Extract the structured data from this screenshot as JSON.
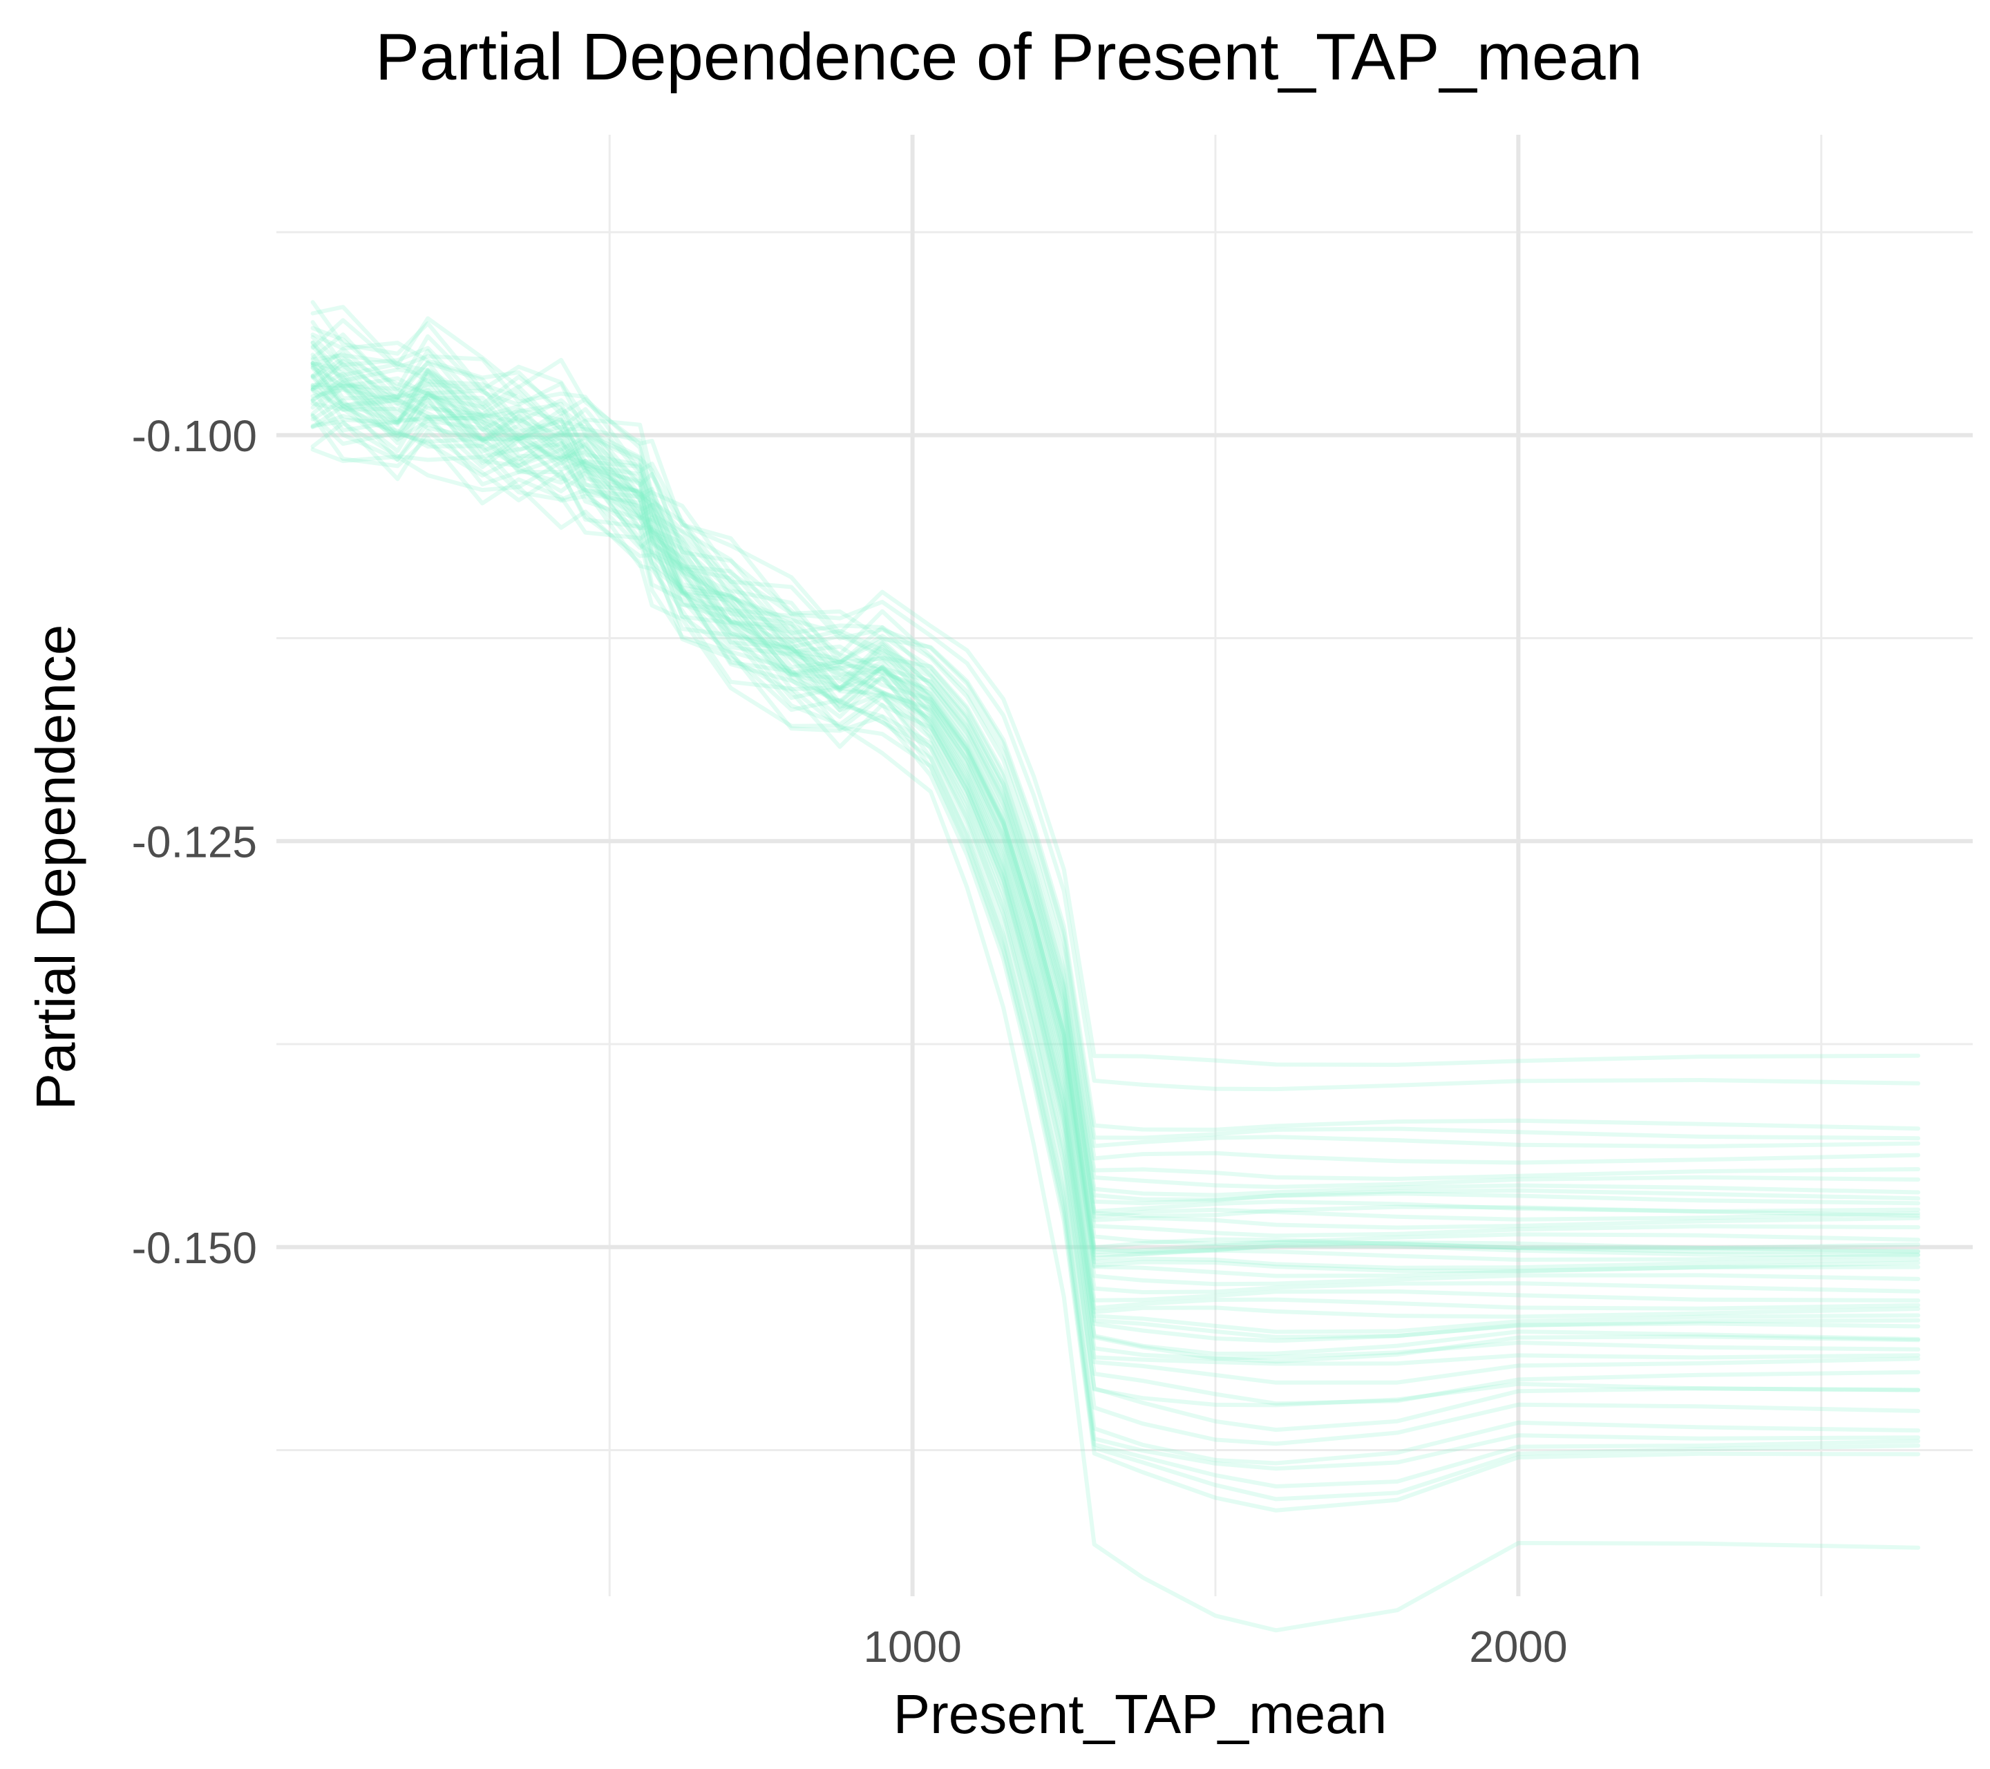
{
  "chart_data": {
    "type": "line",
    "title": "Partial Dependence of Present_TAP_mean",
    "xlabel": "Present_TAP_mean",
    "ylabel": "Partial Dependence",
    "xlim": [
      -50,
      2750
    ],
    "ylim": [
      -0.1715,
      -0.0815
    ],
    "x_ticks": [
      1000,
      2000
    ],
    "x_tick_labels": [
      "1000",
      "2000"
    ],
    "x_minor_gridlines": [
      500,
      1500,
      2500
    ],
    "y_ticks": [
      -0.1,
      -0.125,
      -0.15
    ],
    "y_tick_labels": [
      "-0.100",
      "-0.125",
      "-0.150"
    ],
    "y_minor_gridlines": [
      -0.0875,
      -0.1125,
      -0.1375,
      -0.1625
    ],
    "grid": true,
    "legend": "none",
    "line_color": "#7ff0c8",
    "line_opacity": 0.22,
    "x": [
      10,
      60,
      150,
      200,
      290,
      350,
      420,
      460,
      550,
      570,
      620,
      700,
      800,
      880,
      950,
      1030,
      1090,
      1150,
      1200,
      1250,
      1300,
      1380,
      1500,
      1600,
      1800,
      2000,
      2300,
      2660
    ],
    "base_curve": [
      -0.0965,
      -0.097,
      -0.0985,
      -0.0975,
      -0.0995,
      -0.1,
      -0.1005,
      -0.1015,
      -0.104,
      -0.1055,
      -0.1085,
      -0.111,
      -0.1135,
      -0.115,
      -0.1145,
      -0.1165,
      -0.1195,
      -0.124,
      -0.13,
      -0.137,
      -0.144,
      -0.148,
      -0.15,
      -0.15,
      -0.15,
      -0.15,
      -0.15,
      -0.15
    ],
    "series": [
      {
        "offset": 0.004,
        "plateau": -0.1385,
        "dip": 0.0
      },
      {
        "offset": 0.0035,
        "plateau": -0.14,
        "dip": 0.0
      },
      {
        "offset": 0.003,
        "plateau": -0.1425,
        "dip": 0.0
      },
      {
        "offset": 0.003,
        "plateau": -0.143,
        "dip": 0.0
      },
      {
        "offset": 0.0025,
        "plateau": -0.1435,
        "dip": 0.0
      },
      {
        "offset": 0.0025,
        "plateau": -0.1445,
        "dip": 0.0
      },
      {
        "offset": 0.002,
        "plateau": -0.1455,
        "dip": 0.0
      },
      {
        "offset": 0.002,
        "plateau": -0.146,
        "dip": 0.0
      },
      {
        "offset": 0.0015,
        "plateau": -0.1465,
        "dip": 0.0
      },
      {
        "offset": 0.0015,
        "plateau": -0.147,
        "dip": 0.0
      },
      {
        "offset": 0.0012,
        "plateau": -0.1475,
        "dip": 0.0
      },
      {
        "offset": 0.001,
        "plateau": -0.148,
        "dip": 0.0
      },
      {
        "offset": 0.001,
        "plateau": -0.1485,
        "dip": 0.0
      },
      {
        "offset": 0.0008,
        "plateau": -0.149,
        "dip": 0.0
      },
      {
        "offset": 0.0006,
        "plateau": -0.1495,
        "dip": 0.0
      },
      {
        "offset": 0.0005,
        "plateau": -0.15,
        "dip": 0.0
      },
      {
        "offset": 0.0004,
        "plateau": -0.15,
        "dip": 0.0
      },
      {
        "offset": 0.0003,
        "plateau": -0.1505,
        "dip": 0.0
      },
      {
        "offset": 0.0002,
        "plateau": -0.151,
        "dip": 0.0
      },
      {
        "offset": 0.0,
        "plateau": -0.1515,
        "dip": 0.0
      },
      {
        "offset": 0.0,
        "plateau": -0.152,
        "dip": 0.0
      },
      {
        "offset": -0.0002,
        "plateau": -0.1525,
        "dip": 0.0
      },
      {
        "offset": -0.0003,
        "plateau": -0.153,
        "dip": 0.0
      },
      {
        "offset": -0.0004,
        "plateau": -0.1535,
        "dip": 0.0
      },
      {
        "offset": -0.0005,
        "plateau": -0.154,
        "dip": 0.0
      },
      {
        "offset": -0.0006,
        "plateau": -0.1545,
        "dip": 0.0005
      },
      {
        "offset": -0.0008,
        "plateau": -0.155,
        "dip": 0.0005
      },
      {
        "offset": -0.001,
        "plateau": -0.1555,
        "dip": 0.001
      },
      {
        "offset": -0.001,
        "plateau": -0.156,
        "dip": 0.001
      },
      {
        "offset": -0.0012,
        "plateau": -0.1565,
        "dip": 0.001
      },
      {
        "offset": -0.0015,
        "plateau": -0.157,
        "dip": 0.0015
      },
      {
        "offset": -0.0015,
        "plateau": -0.158,
        "dip": 0.0015
      },
      {
        "offset": -0.002,
        "plateau": -0.159,
        "dip": 0.002
      },
      {
        "offset": -0.002,
        "plateau": -0.16,
        "dip": 0.002
      },
      {
        "offset": -0.0025,
        "plateau": -0.161,
        "dip": 0.0025
      },
      {
        "offset": -0.0025,
        "plateau": -0.1615,
        "dip": 0.0025
      },
      {
        "offset": -0.003,
        "plateau": -0.162,
        "dip": 0.003
      },
      {
        "offset": -0.003,
        "plateau": -0.1625,
        "dip": 0.003
      },
      {
        "offset": -0.0035,
        "plateau": -0.163,
        "dip": 0.003
      },
      {
        "offset": -0.004,
        "plateau": -0.1685,
        "dip": 0.005
      },
      {
        "offset": 0.0012,
        "plateau": -0.1478,
        "dip": 0.0
      },
      {
        "offset": 0.0003,
        "plateau": -0.1502,
        "dip": 0.0
      },
      {
        "offset": 0.0,
        "plateau": -0.1498,
        "dip": 0.0
      },
      {
        "offset": -0.0002,
        "plateau": -0.1512,
        "dip": 0.0
      },
      {
        "offset": -0.0007,
        "plateau": -0.1548,
        "dip": 0.0005
      },
      {
        "offset": -0.0009,
        "plateau": -0.1558,
        "dip": 0.001
      },
      {
        "offset": 0.0018,
        "plateau": -0.1468,
        "dip": 0.0
      },
      {
        "offset": -0.0018,
        "plateau": -0.1585,
        "dip": 0.0015
      }
    ]
  }
}
